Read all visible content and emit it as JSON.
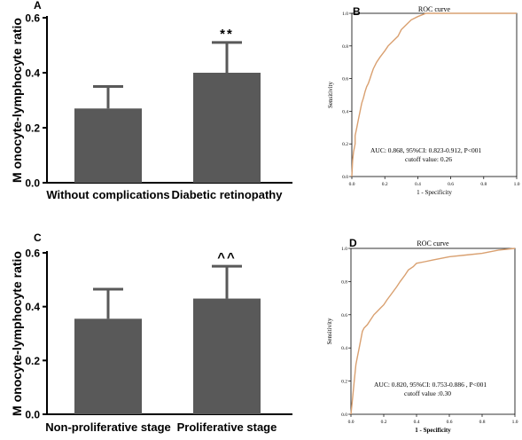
{
  "panels": {
    "A": {
      "letter": "A",
      "chart_data": {
        "type": "bar",
        "categories": [
          "Without complications",
          "Diabetic retinopathy"
        ],
        "values": [
          0.27,
          0.4
        ],
        "errors": [
          0.08,
          0.11
        ],
        "ylabel": "M onocyte-lymphocyte ratio",
        "ylim": [
          0,
          0.6
        ],
        "yticks": [
          "0.0",
          "0.2",
          "0.4",
          "0.6"
        ],
        "annotations": [
          "",
          "**"
        ],
        "bar_color": "#595959"
      }
    },
    "B": {
      "letter": "B",
      "chart_data": {
        "type": "line",
        "title": "ROC curve",
        "xlabel": "1 - Specificity",
        "ylabel": "Sensitivity",
        "xlim": [
          0,
          1
        ],
        "ylim": [
          0,
          1
        ],
        "xticks": [
          "0.0",
          "0.2",
          "0.4",
          "0.6",
          "0.8",
          "1.0"
        ],
        "yticks": [
          "0.0",
          "0.2",
          "0.4",
          "0.6",
          "0.8",
          "1.0"
        ],
        "auc_text": "AUC: 0.868, 95%CI: 0.823-0.912, P<001",
        "cutoff_text": "cutoff value: 0.26",
        "line_color": "#d9a070",
        "x": [
          0,
          0.005,
          0.01,
          0.02,
          0.02,
          0.03,
          0.04,
          0.05,
          0.06,
          0.07,
          0.08,
          0.09,
          0.1,
          0.11,
          0.12,
          0.13,
          0.15,
          0.17,
          0.2,
          0.22,
          0.25,
          0.28,
          0.3,
          0.33,
          0.36,
          0.4,
          0.45,
          0.5
        ],
        "y": [
          0,
          0.1,
          0.15,
          0.2,
          0.25,
          0.3,
          0.35,
          0.4,
          0.45,
          0.48,
          0.52,
          0.55,
          0.57,
          0.6,
          0.63,
          0.66,
          0.7,
          0.73,
          0.77,
          0.8,
          0.83,
          0.86,
          0.9,
          0.93,
          0.96,
          0.98,
          1.0,
          1.0
        ]
      }
    },
    "C": {
      "letter": "C",
      "chart_data": {
        "type": "bar",
        "categories": [
          "Non-proliferative stage",
          "Proliferative stage"
        ],
        "values": [
          0.355,
          0.43
        ],
        "errors": [
          0.11,
          0.12
        ],
        "ylabel": "M onocyte-lymphocyte ratio",
        "ylim": [
          0,
          0.6
        ],
        "yticks": [
          "0.0",
          "0.2",
          "0.4",
          "0.6"
        ],
        "annotations": [
          "",
          "^^"
        ],
        "bar_color": "#595959"
      }
    },
    "D": {
      "letter": "D",
      "chart_data": {
        "type": "line",
        "title": "ROC curve",
        "xlabel": "1 - Specificity",
        "ylabel": "Sensitivity",
        "xlim": [
          0,
          1
        ],
        "ylim": [
          0,
          1
        ],
        "xticks": [
          "0.0",
          "0.2",
          "0.4",
          "0.6",
          "0.8",
          "1.0"
        ],
        "yticks": [
          "0.0",
          "0.2",
          "0.4",
          "0.6",
          "0.8",
          "1.0"
        ],
        "auc_text": "AUC: 0.820, 95%CI: 0.753-0.886 , P<001",
        "cutoff_text": "cutoff value :0.30",
        "line_color": "#d9a070",
        "x": [
          0,
          0.01,
          0.02,
          0.03,
          0.04,
          0.05,
          0.06,
          0.07,
          0.08,
          0.1,
          0.12,
          0.14,
          0.16,
          0.18,
          0.2,
          0.22,
          0.25,
          0.28,
          0.3,
          0.33,
          0.35,
          0.38,
          0.4,
          0.45,
          0.5,
          0.6,
          0.7,
          0.8,
          0.9,
          1.0
        ],
        "y": [
          0,
          0.1,
          0.2,
          0.3,
          0.35,
          0.4,
          0.45,
          0.5,
          0.52,
          0.54,
          0.57,
          0.6,
          0.62,
          0.64,
          0.66,
          0.69,
          0.73,
          0.77,
          0.8,
          0.84,
          0.87,
          0.89,
          0.91,
          0.92,
          0.93,
          0.95,
          0.96,
          0.97,
          0.99,
          1.0
        ]
      }
    }
  }
}
